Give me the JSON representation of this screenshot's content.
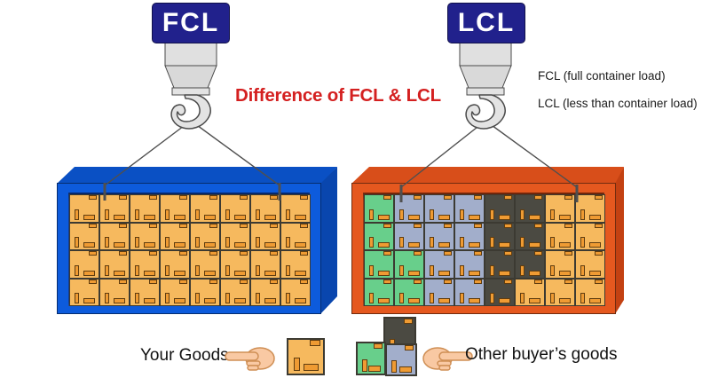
{
  "title": {
    "text": "Difference of FCL & LCL",
    "color": "#d42020"
  },
  "crane_signs": {
    "fcl": "FCL",
    "lcl": "LCL",
    "bg_color": "#21218c",
    "text_color": "#ffffff"
  },
  "definitions": {
    "fcl": "FCL (full container load)",
    "lcl": "LCL (less than container load)"
  },
  "legend": {
    "your_goods_label": "Your Goods",
    "other_goods_label": "Other buyer’s goods",
    "your_goods_icon": "right-pointing-hand-icon",
    "other_goods_icon": "left-pointing-hand-icon",
    "single_box": "O",
    "cluster_boxes": [
      "D",
      "G",
      "B"
    ]
  },
  "containers": {
    "fcl": {
      "label": "FCL container",
      "front_color": "#0d5bdc",
      "top_color": "#0a50c4",
      "side_color": "#0946ae",
      "recess_color": "#0b3da0",
      "grid": [
        "OOOOOOOO",
        "OOOOOOOO",
        "OOOOOOOO",
        "OOOOOOOO"
      ]
    },
    "lcl": {
      "label": "LCL container",
      "front_color": "#e5581f",
      "top_color": "#d84e1a",
      "side_color": "#c34112",
      "recess_color": "#a93a10",
      "grid": [
        "GBBBDDOO",
        "GBBBDDOO",
        "GGBBDDOO",
        "GGBBDOOO"
      ]
    }
  },
  "box_colors": {
    "O": "#f6b95e",
    "G": "#68cf8b",
    "B": "#a2aecb",
    "D": "#4b4a42"
  },
  "box_detail_color": "#ef9b33",
  "cable_color": "#4f4f4f",
  "hook_fill": "#e2e2e2",
  "hook_stroke": "#4a4a4a"
}
